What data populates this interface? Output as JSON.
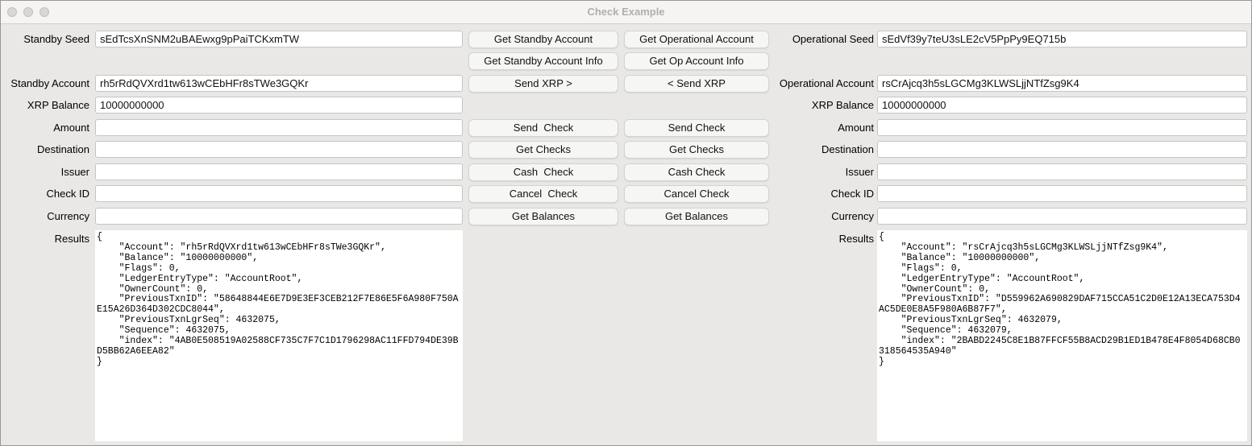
{
  "window": {
    "title": "Check Example"
  },
  "colors": {
    "window_background": "#e9e8e6",
    "titlebar_background": "#f6f4f2",
    "title_text": "#b1afac",
    "button_background": "#f6f6f5",
    "field_background": "#ffffff"
  },
  "standby": {
    "seed_label": "Standby Seed",
    "seed_value": "sEdTcsXnSNM2uBAEwxg9pPaiTCKxmTW",
    "account_label": "Standby Account",
    "account_value": "rh5rRdQVXrd1tw613wCEbHFr8sTWe3GQKr",
    "balance_label": "XRP Balance",
    "balance_value": "10000000000",
    "amount_label": "Amount",
    "amount_value": "",
    "destination_label": "Destination",
    "destination_value": "",
    "issuer_label": "Issuer",
    "issuer_value": "",
    "check_id_label": "Check ID",
    "check_id_value": "",
    "currency_label": "Currency",
    "currency_value": "",
    "results_label": "Results",
    "results_value": "{\n    \"Account\": \"rh5rRdQVXrd1tw613wCEbHFr8sTWe3GQKr\",\n    \"Balance\": \"10000000000\",\n    \"Flags\": 0,\n    \"LedgerEntryType\": \"AccountRoot\",\n    \"OwnerCount\": 0,\n    \"PreviousTxnID\": \"58648844E6E7D9E3EF3CEB212F7E86E5F6A980F750A\nE15A26D364D302CDC8044\",\n    \"PreviousTxnLgrSeq\": 4632075,\n    \"Sequence\": 4632075,\n    \"index\": \"4AB0E508519A02588CF735C7F7C1D1796298AC11FFD794DE39B\nD5BB62A6EEA82\"\n}"
  },
  "operational": {
    "seed_label": "Operational Seed",
    "seed_value": "sEdVf39y7teU3sLE2cV5PpPy9EQ715b",
    "account_label": "Operational Account",
    "account_value": "rsCrAjcq3h5sLGCMg3KLWSLjjNTfZsg9K4",
    "balance_label": "XRP Balance",
    "balance_value": "10000000000",
    "amount_label": "Amount",
    "amount_value": "",
    "destination_label": "Destination",
    "destination_value": "",
    "issuer_label": "Issuer",
    "issuer_value": "",
    "check_id_label": "Check ID",
    "check_id_value": "",
    "currency_label": "Currency",
    "currency_value": "",
    "results_label": "Results",
    "results_value": "{\n    \"Account\": \"rsCrAjcq3h5sLGCMg3KLWSLjjNTfZsg9K4\",\n    \"Balance\": \"10000000000\",\n    \"Flags\": 0,\n    \"LedgerEntryType\": \"AccountRoot\",\n    \"OwnerCount\": 0,\n    \"PreviousTxnID\": \"D559962A690829DAF715CCA51C2D0E12A13ECA753D4\nAC5DE0E8A5F980A6B87F7\",\n    \"PreviousTxnLgrSeq\": 4632079,\n    \"Sequence\": 4632079,\n    \"index\": \"2BABD2245C8E1B87FFCF55B8ACD29B1ED1B478E4F8054D68CB0\n318564535A940\"\n}"
  },
  "buttons": {
    "standby": [
      "Get Standby Account",
      "Get Standby Account Info",
      "Send XRP >",
      "Send  Check",
      "Get Checks",
      "Cash  Check",
      "Cancel  Check",
      "Get Balances"
    ],
    "operational": [
      "Get Operational Account",
      "Get Op Account Info",
      "< Send XRP",
      "Send Check",
      "Get Checks",
      "Cash Check",
      "Cancel Check",
      "Get Balances"
    ]
  }
}
